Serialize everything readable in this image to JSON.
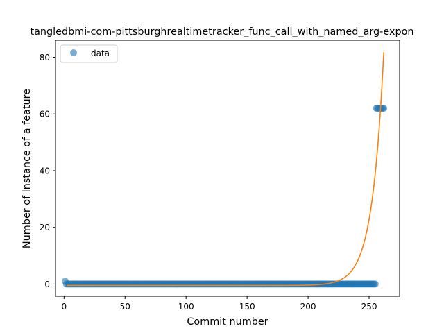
{
  "chart_data": {
    "type": "scatter",
    "title": "tangledbmi-com-pittsburghrealtimetracker_func_call_with_named_arg-expon",
    "xlabel": "Commit number",
    "ylabel": "Number of instance of a feature",
    "xlim": [
      -7,
      275
    ],
    "ylim": [
      -4.3,
      86
    ],
    "xticks": [
      0,
      50,
      100,
      150,
      200,
      250
    ],
    "yticks": [
      0,
      20,
      40,
      60,
      80
    ],
    "legend_position": "upper-left",
    "series": [
      {
        "name": "data",
        "kind": "points",
        "color": "#1f77b4",
        "x_first": 1,
        "x_last": 262,
        "segments": [
          {
            "x_start": 1,
            "x_end": 1,
            "y": 1
          },
          {
            "x_start": 2,
            "x_end": 255,
            "y": 0
          },
          {
            "x_start": 256,
            "x_end": 262,
            "y": 62
          }
        ]
      },
      {
        "kind": "fit-line",
        "color": "#ff7f0e",
        "model": "exponential",
        "x_range": [
          2,
          262
        ],
        "y_start": -0.5,
        "y_end": 81.8,
        "growth_rate": 0.105
      }
    ]
  }
}
